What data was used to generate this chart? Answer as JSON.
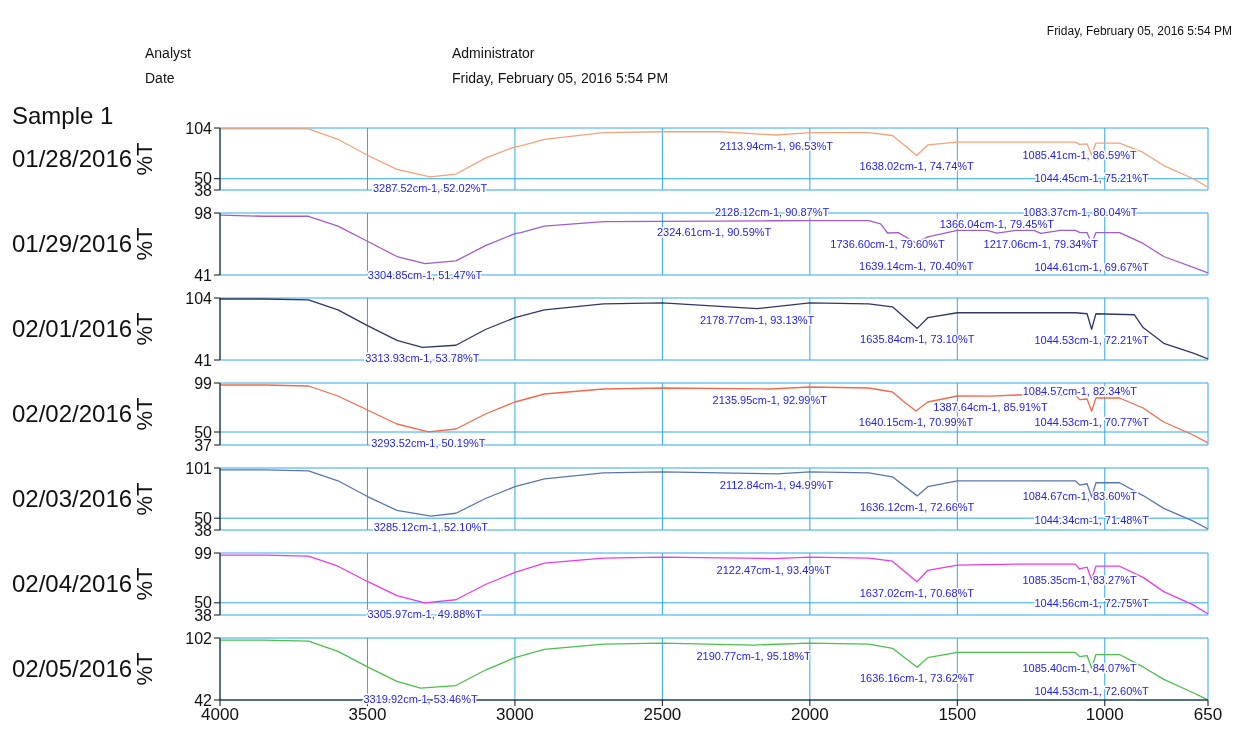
{
  "chart_data": [
    {
      "type": "line",
      "title": "01/28/2016",
      "ylabel": "%T",
      "color": "#f5a27a",
      "xlim": [
        4000,
        650
      ],
      "xticks": [
        4000,
        3500,
        3000,
        2500,
        2000,
        1500,
        1000,
        650
      ],
      "ylim": [
        38,
        104
      ],
      "yticks": [
        104,
        50,
        38
      ],
      "grid": true,
      "tick_labels": "y",
      "x": [
        4000,
        3850,
        3700,
        3600,
        3500,
        3400,
        3287.52,
        3200,
        3100,
        3000,
        2980,
        2900,
        2700,
        2500,
        2300,
        2113.94,
        2000,
        1800,
        1720,
        1680,
        1638.02,
        1600,
        1500,
        1300,
        1100,
        1085.41,
        1060,
        1044.45,
        1030,
        950,
        870,
        800,
        700,
        650
      ],
      "values": [
        103,
        103,
        103,
        92,
        75,
        60,
        52.02,
        55,
        72,
        84,
        85,
        92,
        99,
        100,
        100,
        96.53,
        99,
        99,
        96,
        86,
        74.74,
        86,
        89,
        89,
        89,
        86.59,
        87,
        75.21,
        88,
        88,
        78,
        64,
        50,
        41
      ],
      "annotations": [
        "Analyst",
        "Administrator",
        "Date",
        "Friday, February 05, 2016 5:54 PM",
        "Friday, February 05, 2016 5:54 PM",
        "Sample 1",
        {
          "text": "3287.52cm-1, 52.02%T",
          "x": 3287.52,
          "y": 52.02
        },
        {
          "text": "2113.94cm-1, 96.53%T",
          "x": 2113.94,
          "y": 96.53
        },
        {
          "text": "1638.02cm-1, 74.74%T",
          "x": 1638.02,
          "y": 74.74
        },
        {
          "text": "1085.41cm-1, 86.59%T",
          "x": 1085.41,
          "y": 86.59
        },
        {
          "text": "1044.45cm-1, 75.21%T",
          "x": 1044.45,
          "y": 75.21
        }
      ]
    },
    {
      "type": "line",
      "title": "01/29/2016",
      "ylabel": "%T",
      "color": "#a25cc9",
      "xlim": [
        4000,
        650
      ],
      "xticks": [
        4000,
        3500,
        3000,
        2500,
        2000,
        1500,
        1000,
        650
      ],
      "ylim": [
        41,
        98
      ],
      "yticks": [
        98,
        41
      ],
      "grid": true,
      "tick_labels": "y",
      "x": [
        4000,
        3850,
        3700,
        3600,
        3500,
        3400,
        3304.85,
        3200,
        3100,
        3000,
        2980,
        2900,
        2700,
        2324.61,
        2128.12,
        2000,
        1800,
        1760,
        1736.6,
        1700,
        1639.14,
        1600,
        1500,
        1400,
        1366.04,
        1300,
        1240,
        1217.06,
        1150,
        1100,
        1083.37,
        1060,
        1044.61,
        1030,
        950,
        870,
        800,
        700,
        650
      ],
      "values": [
        96,
        95,
        95,
        86,
        72,
        58,
        51.47,
        54,
        68,
        79,
        80,
        86,
        90,
        90.59,
        90.87,
        91,
        91,
        88,
        79.6,
        80,
        70.4,
        76,
        82,
        82,
        79.45,
        82,
        82,
        79.34,
        82,
        82,
        80.04,
        80,
        69.67,
        80,
        80,
        70,
        58,
        48,
        43
      ],
      "annotations": [
        {
          "text": "3304.85cm-1, 51.47%T",
          "x": 3304.85,
          "y": 51.47
        },
        {
          "text": "2324.61cm-1, 90.59%T",
          "x": 2324.61,
          "y": 90.59
        },
        {
          "text": "2128.12cm-1, 90.87%T",
          "x": 2128.12,
          "y": 90.87
        },
        {
          "text": "1736.60cm-1, 79.60%T",
          "x": 1736.6,
          "y": 79.6
        },
        {
          "text": "1639.14cm-1, 70.40%T",
          "x": 1639.14,
          "y": 70.4
        },
        {
          "text": "1366.04cm-1, 79.45%T",
          "x": 1366.04,
          "y": 79.45
        },
        {
          "text": "1217.06cm-1, 79.34%T",
          "x": 1217.06,
          "y": 79.34
        },
        {
          "text": "1083.37cm-1, 80.04%T",
          "x": 1083.37,
          "y": 80.04
        },
        {
          "text": "1044.61cm-1, 69.67%T",
          "x": 1044.61,
          "y": 69.67
        }
      ]
    },
    {
      "type": "line",
      "title": "02/01/2016",
      "ylabel": "%T",
      "color": "#2e3766",
      "xlim": [
        4000,
        650
      ],
      "xticks": [
        4000,
        3500,
        3000,
        2500,
        2000,
        1500,
        1000,
        650
      ],
      "ylim": [
        41,
        104
      ],
      "yticks": [
        104,
        41
      ],
      "grid": true,
      "tick_labels": "y",
      "x": [
        4000,
        3850,
        3700,
        3600,
        3500,
        3400,
        3313.93,
        3200,
        3100,
        3000,
        2900,
        2700,
        2500,
        2178.77,
        2000,
        1800,
        1720,
        1635.84,
        1600,
        1500,
        1300,
        1100,
        1060,
        1044.53,
        1030,
        900,
        870,
        800,
        700,
        650
      ],
      "values": [
        103,
        103,
        102,
        92,
        76,
        61,
        53.78,
        56,
        72,
        84,
        92,
        98,
        99,
        93.13,
        99,
        98,
        95,
        73.1,
        84,
        89,
        89,
        89,
        88,
        72.21,
        88,
        87,
        74,
        58,
        48,
        42
      ],
      "annotations": [
        {
          "text": "3313.93cm-1, 53.78%T",
          "x": 3313.93,
          "y": 53.78
        },
        {
          "text": "2178.77cm-1, 93.13%T",
          "x": 2178.77,
          "y": 93.13
        },
        {
          "text": "1635.84cm-1, 73.10%T",
          "x": 1635.84,
          "y": 73.1
        },
        {
          "text": "1044.53cm-1, 72.21%T",
          "x": 1044.53,
          "y": 72.21
        }
      ]
    },
    {
      "type": "line",
      "title": "02/02/2016",
      "ylabel": "%T",
      "color": "#f26a4b",
      "xlim": [
        4000,
        650
      ],
      "xticks": [
        4000,
        3500,
        3000,
        2500,
        2000,
        1500,
        1000,
        650
      ],
      "ylim": [
        37,
        99
      ],
      "yticks": [
        99,
        50,
        37
      ],
      "grid": true,
      "tick_labels": "y",
      "x": [
        4000,
        3850,
        3700,
        3600,
        3500,
        3400,
        3293.52,
        3200,
        3100,
        3000,
        2900,
        2700,
        2500,
        2135.95,
        2000,
        1800,
        1720,
        1680,
        1640.15,
        1600,
        1500,
        1387.64,
        1300,
        1100,
        1084.57,
        1060,
        1044.53,
        1030,
        950,
        870,
        800,
        700,
        650
      ],
      "values": [
        97,
        97,
        96,
        86,
        72,
        58,
        50.19,
        53,
        68,
        80,
        88,
        93,
        94,
        92.99,
        95,
        94,
        90,
        80,
        70.99,
        80,
        86,
        85.91,
        87,
        87,
        82.34,
        83,
        70.77,
        84,
        84,
        74,
        60,
        47,
        39
      ],
      "annotations": [
        {
          "text": "3293.52cm-1, 50.19%T",
          "x": 3293.52,
          "y": 50.19
        },
        {
          "text": "2135.95cm-1, 92.99%T",
          "x": 2135.95,
          "y": 92.99
        },
        {
          "text": "1640.15cm-1, 70.99%T",
          "x": 1640.15,
          "y": 70.99
        },
        {
          "text": "1387.64cm-1, 85.91%T",
          "x": 1387.64,
          "y": 85.91
        },
        {
          "text": "1084.57cm-1, 82.34%T",
          "x": 1084.57,
          "y": 82.34
        },
        {
          "text": "1044.53cm-1, 70.77%T",
          "x": 1044.53,
          "y": 70.77
        }
      ]
    },
    {
      "type": "line",
      "title": "02/03/2016",
      "ylabel": "%T",
      "color": "#5a76ae",
      "xlim": [
        4000,
        650
      ],
      "xticks": [
        4000,
        3500,
        3000,
        2500,
        2000,
        1500,
        1000,
        650
      ],
      "ylim": [
        38,
        101
      ],
      "yticks": [
        101,
        50,
        38
      ],
      "grid": true,
      "tick_labels": "y",
      "x": [
        4000,
        3850,
        3700,
        3600,
        3500,
        3400,
        3285.12,
        3200,
        3100,
        3000,
        2900,
        2700,
        2500,
        2112.84,
        2000,
        1800,
        1720,
        1636.12,
        1600,
        1500,
        1300,
        1100,
        1084.67,
        1060,
        1044.34,
        1030,
        950,
        870,
        800,
        700,
        650
      ],
      "values": [
        99,
        99,
        98,
        88,
        72,
        58,
        52.1,
        55,
        70,
        82,
        90,
        96,
        97,
        94.99,
        97,
        96,
        92,
        72.66,
        82,
        88,
        88,
        88,
        83.6,
        85,
        71.48,
        86,
        86,
        73,
        60,
        47,
        39
      ],
      "annotations": [
        {
          "text": "3285.12cm-1, 52.10%T",
          "x": 3285.12,
          "y": 52.1
        },
        {
          "text": "2112.84cm-1, 94.99%T",
          "x": 2112.84,
          "y": 94.99
        },
        {
          "text": "1636.12cm-1, 72.66%T",
          "x": 1636.12,
          "y": 72.66
        },
        {
          "text": "1084.67cm-1, 83.60%T",
          "x": 1084.67,
          "y": 83.6
        },
        {
          "text": "1044.34cm-1, 71.48%T",
          "x": 1044.34,
          "y": 71.48
        }
      ]
    },
    {
      "type": "line",
      "title": "02/04/2016",
      "ylabel": "%T",
      "color": "#e83ce6",
      "xlim": [
        4000,
        650
      ],
      "xticks": [
        4000,
        3500,
        3000,
        2500,
        2000,
        1500,
        1000,
        650
      ],
      "ylim": [
        38,
        99
      ],
      "yticks": [
        99,
        50,
        38
      ],
      "grid": true,
      "tick_labels": "y",
      "x": [
        4000,
        3850,
        3700,
        3600,
        3500,
        3400,
        3305.97,
        3200,
        3100,
        3000,
        2900,
        2700,
        2500,
        2122.47,
        2000,
        1800,
        1720,
        1637.02,
        1600,
        1500,
        1300,
        1100,
        1085.35,
        1060,
        1044.56,
        1030,
        950,
        870,
        800,
        700,
        650
      ],
      "values": [
        97,
        97,
        96,
        86,
        71,
        57,
        49.88,
        53,
        68,
        80,
        89,
        94,
        95,
        93.49,
        95,
        94,
        91,
        70.68,
        82,
        87,
        88,
        88,
        83.27,
        85,
        72.75,
        86,
        86,
        75,
        61,
        48,
        39
      ],
      "annotations": [
        {
          "text": "3305.97cm-1, 49.88%T",
          "x": 3305.97,
          "y": 49.88
        },
        {
          "text": "2122.47cm-1, 93.49%T",
          "x": 2122.47,
          "y": 93.49
        },
        {
          "text": "1637.02cm-1, 70.68%T",
          "x": 1637.02,
          "y": 70.68
        },
        {
          "text": "1085.35cm-1, 83.27%T",
          "x": 1085.35,
          "y": 83.27
        },
        {
          "text": "1044.56cm-1, 72.75%T",
          "x": 1044.56,
          "y": 72.75
        }
      ]
    },
    {
      "type": "line",
      "title": "02/05/2016",
      "ylabel": "%T",
      "color": "#4cbf4c",
      "xlim": [
        4000,
        650
      ],
      "xticks": [
        4000,
        3500,
        3000,
        2500,
        2000,
        1500,
        1000,
        650
      ],
      "ylim": [
        42,
        102
      ],
      "yticks": [
        102,
        42
      ],
      "grid": true,
      "x": [
        4000,
        3850,
        3700,
        3600,
        3500,
        3400,
        3319.92,
        3200,
        3100,
        3000,
        2900,
        2700,
        2500,
        2190.77,
        2000,
        1800,
        1720,
        1636.16,
        1600,
        1500,
        1300,
        1100,
        1085.4,
        1060,
        1044.53,
        1030,
        950,
        870,
        800,
        700,
        650
      ],
      "values": [
        100,
        100,
        99,
        89,
        74,
        60,
        53.46,
        56,
        71,
        83,
        91,
        96,
        97,
        95.18,
        97,
        96,
        92,
        73.62,
        83,
        88,
        88,
        88,
        84.07,
        85,
        72.6,
        86,
        86,
        74,
        62,
        49,
        42
      ],
      "annotations": [
        {
          "text": "3319.92cm-1, 53.46%T",
          "x": 3319.92,
          "y": 53.46
        },
        {
          "text": "2190.77cm-1, 95.18%T",
          "x": 2190.77,
          "y": 95.18
        },
        {
          "text": "1636.16cm-1, 73.62%T",
          "x": 1636.16,
          "y": 73.62
        },
        {
          "text": "1085.40cm-1, 84.07%T",
          "x": 1085.4,
          "y": 84.07
        },
        {
          "text": "1044.53cm-1, 72.60%T",
          "x": 1044.53,
          "y": 72.6
        }
      ]
    }
  ]
}
